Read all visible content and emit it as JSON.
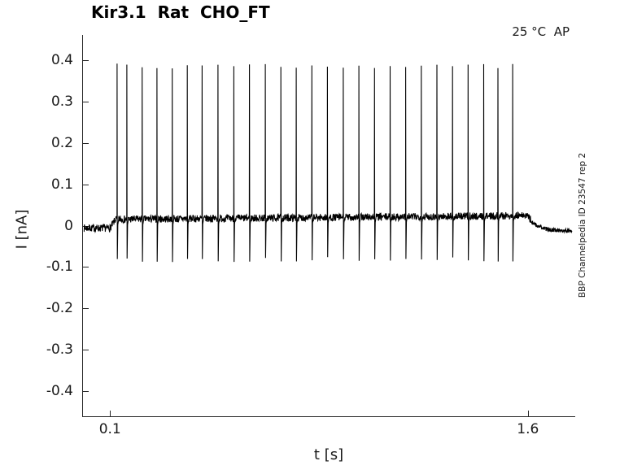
{
  "chart_data": {
    "type": "line",
    "title": "Kir3.1  Rat  CHO_FT",
    "xlabel": "t [s]",
    "ylabel": "I [nA]",
    "annotations": {
      "top_right": "25 °C  AP",
      "right_rotated": "BBP Channelpedia ID 23547 rep 2"
    },
    "xlim": [
      0,
      1.77
    ],
    "ylim": [
      -0.46,
      0.46
    ],
    "xticks": {
      "values": [
        0.1,
        1.6
      ],
      "labels": [
        "0.1",
        "1.6"
      ]
    },
    "yticks": {
      "values": [
        0.4,
        0.3,
        0.2,
        0.1,
        0,
        -0.1,
        -0.2,
        -0.3,
        -0.4
      ],
      "labels": [
        "0.4",
        "0.3",
        "0.2",
        "0.1",
        "0",
        "-0.1",
        "-0.2",
        "-0.3",
        "-0.4"
      ]
    },
    "grid": false,
    "legend": "none",
    "colors": {
      "trace": "#000000",
      "axis": "#262626",
      "text": "#000000",
      "background": "#ffffff"
    },
    "trace": {
      "description": "Noisy current trace at ~0 nA baseline; stimulation from 0.1 s to 1.6 s elevates baseline to ~0.02 nA and evokes 27 regularly spaced spikes (~0.385 nA peak, ~-0.08 nA undershoot); trace relaxes to ~-0.01 nA after stimulus end.",
      "t_start": 0.006,
      "t_end": 1.758,
      "stim_start": 0.1,
      "stim_end": 1.6,
      "baseline_pre_nA": -0.006,
      "baseline_stim_start_nA": 0.015,
      "baseline_stim_end_nA": 0.024,
      "baseline_post_nA": -0.012,
      "noise_amp_nA": 0.009,
      "noise_amp_post_nA": 0.005,
      "spike_peak_nA": 0.385,
      "spike_trough_nA": -0.082,
      "spike_count": 27,
      "spike_times_s": [
        0.125,
        0.16,
        0.215,
        0.268,
        0.323,
        0.377,
        0.43,
        0.487,
        0.544,
        0.6,
        0.657,
        0.713,
        0.768,
        0.824,
        0.88,
        0.937,
        0.993,
        1.049,
        1.105,
        1.161,
        1.217,
        1.273,
        1.329,
        1.385,
        1.441,
        1.492,
        1.545
      ]
    }
  }
}
